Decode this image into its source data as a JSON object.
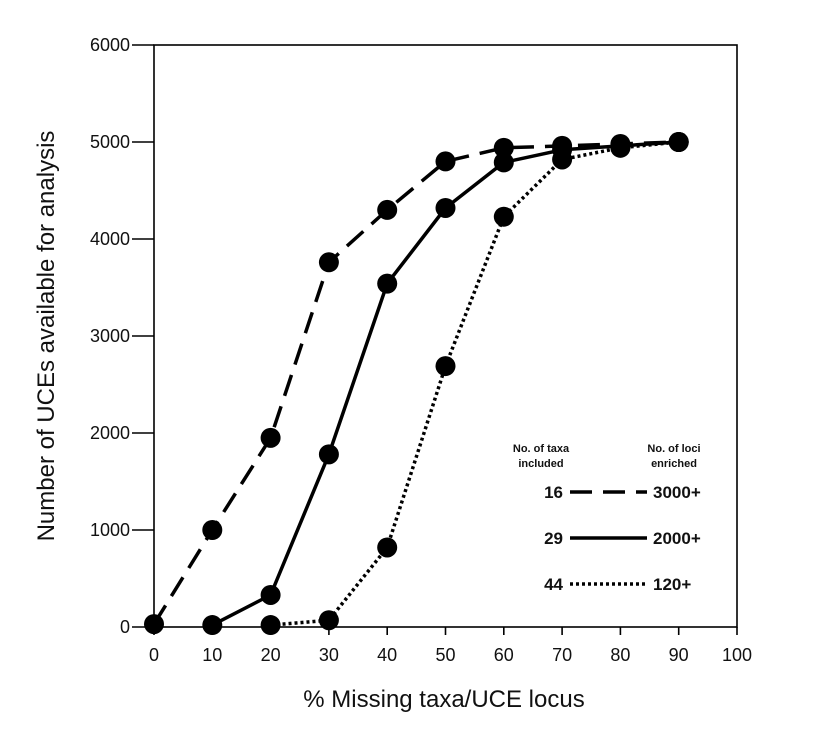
{
  "chart_data": {
    "type": "line",
    "xlabel": "% Missing taxa/UCE locus",
    "ylabel": "Number of UCEs available for analysis",
    "xlim": [
      0,
      100
    ],
    "ylim": [
      0,
      6000
    ],
    "x_ticks": [
      "0",
      "10",
      "20",
      "30",
      "40",
      "50",
      "60",
      "70",
      "80",
      "90",
      "100"
    ],
    "y_ticks": [
      "0",
      "1000",
      "2000",
      "3000",
      "4000",
      "5000",
      "6000"
    ],
    "grid": false,
    "legend_position": "lower-right",
    "legend_headers": {
      "left": [
        "No. of taxa",
        "included"
      ],
      "right": [
        "No. of loci",
        "enriched"
      ]
    },
    "series": [
      {
        "taxa": "16",
        "loci": "3000+",
        "line_style": "dashed",
        "points": [
          [
            0,
            30
          ],
          [
            10,
            1000
          ],
          [
            20,
            1950
          ],
          [
            30,
            3760
          ],
          [
            40,
            4300
          ],
          [
            50,
            4800
          ],
          [
            60,
            4940
          ],
          [
            70,
            4960
          ],
          [
            80,
            4980
          ],
          [
            90,
            5000
          ]
        ]
      },
      {
        "taxa": "29",
        "loci": "2000+",
        "line_style": "solid",
        "points": [
          [
            10,
            20
          ],
          [
            20,
            330
          ],
          [
            30,
            1780
          ],
          [
            40,
            3540
          ],
          [
            50,
            4320
          ],
          [
            60,
            4790
          ],
          [
            70,
            4920
          ],
          [
            80,
            4960
          ],
          [
            90,
            5000
          ]
        ]
      },
      {
        "taxa": "44",
        "loci": "120+",
        "line_style": "dotted",
        "points": [
          [
            20,
            20
          ],
          [
            30,
            70
          ],
          [
            40,
            820
          ],
          [
            50,
            2690
          ],
          [
            60,
            4230
          ],
          [
            70,
            4820
          ],
          [
            80,
            4940
          ],
          [
            90,
            5000
          ]
        ]
      }
    ]
  }
}
